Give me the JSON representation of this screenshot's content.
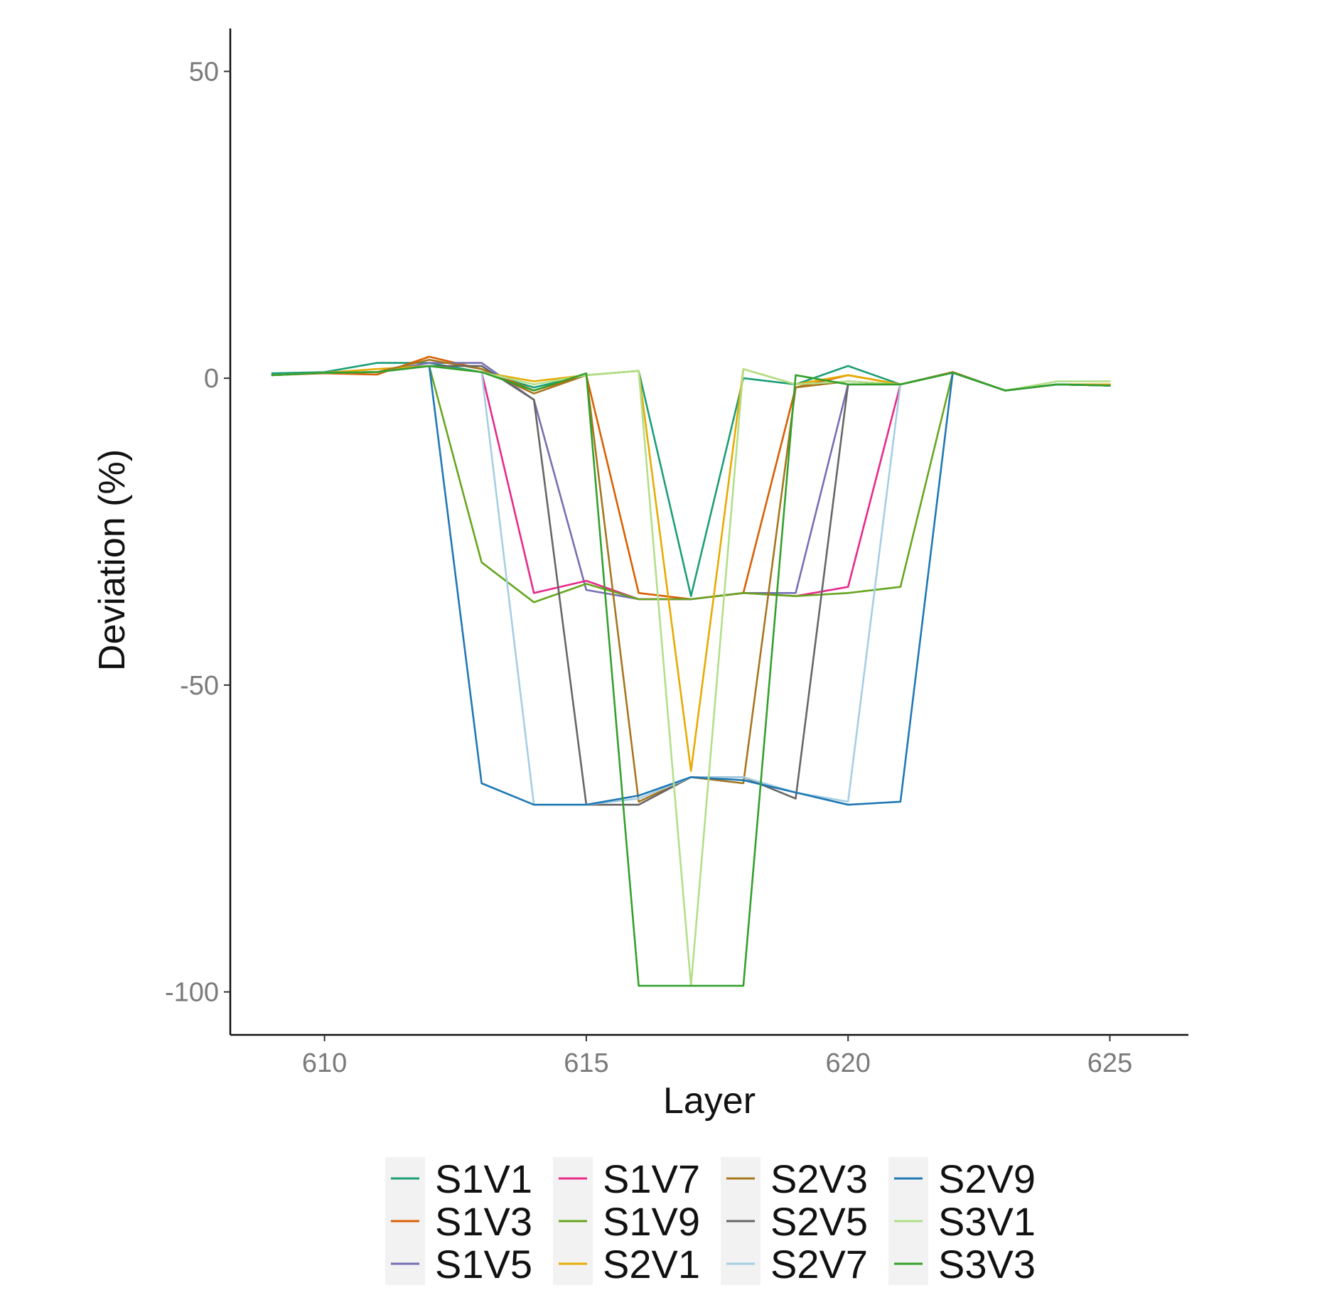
{
  "chart_data": {
    "type": "line",
    "title": "",
    "xlabel": "Layer",
    "ylabel": "Deviation (%)",
    "xlim": [
      608.2,
      626.5
    ],
    "ylim": [
      -107,
      57
    ],
    "xticks": [
      610,
      615,
      620,
      625
    ],
    "yticks": [
      50,
      0,
      -50,
      -100
    ],
    "grid": false,
    "legend_position": "bottom",
    "x": [
      609,
      610,
      611,
      612,
      613,
      614,
      615,
      616,
      617,
      618,
      619,
      620,
      621,
      622,
      623,
      624,
      625
    ],
    "series": [
      {
        "name": "S1V1",
        "color": "#1b9e77",
        "values": [
          0.8,
          1.0,
          2.5,
          2.5,
          1.0,
          -1.5,
          0.5,
          1.2,
          -35.5,
          0.0,
          -1.0,
          2.0,
          -1.0,
          1.0,
          -2.0,
          -1.0,
          -1.0
        ]
      },
      {
        "name": "S1V3",
        "color": "#d95f02",
        "values": [
          0.5,
          0.8,
          0.6,
          3.5,
          1.5,
          -2.0,
          0.5,
          -35.0,
          -36.0,
          -35.0,
          -1.5,
          0.5,
          -1.0,
          1.0,
          -2.0,
          -1.0,
          -1.2
        ]
      },
      {
        "name": "S1V5",
        "color": "#7570b3",
        "values": [
          0.5,
          0.9,
          1.0,
          2.5,
          2.5,
          -3.5,
          -34.5,
          -36.0,
          -36.0,
          -35.0,
          -35.0,
          -1.0,
          -1.0,
          0.9,
          -2.0,
          -1.0,
          -1.2
        ]
      },
      {
        "name": "S1V7",
        "color": "#e7298a",
        "values": [
          0.5,
          0.9,
          1.0,
          2.0,
          1.0,
          -35.0,
          -33.0,
          -36.0,
          -36.0,
          -35.0,
          -35.5,
          -34.0,
          -1.0,
          0.9,
          -2.0,
          -1.0,
          -1.2
        ]
      },
      {
        "name": "S1V9",
        "color": "#66a61e",
        "values": [
          0.5,
          0.9,
          1.0,
          2.0,
          -30.0,
          -36.5,
          -33.5,
          -36.0,
          -36.0,
          -35.0,
          -35.5,
          -35.0,
          -34.0,
          0.9,
          -2.0,
          -1.0,
          -1.2
        ]
      },
      {
        "name": "S2V1",
        "color": "#e6ab02",
        "values": [
          0.5,
          0.9,
          1.5,
          2.0,
          1.0,
          -0.5,
          0.5,
          1.2,
          -64.0,
          1.5,
          -1.0,
          0.5,
          -1.0,
          0.9,
          -2.0,
          -1.0,
          -1.0
        ]
      },
      {
        "name": "S2V3",
        "color": "#a6761d",
        "values": [
          0.5,
          0.9,
          1.0,
          3.0,
          1.5,
          -2.5,
          0.5,
          -69.0,
          -65.0,
          -66.0,
          -1.5,
          -0.5,
          -1.0,
          0.9,
          -2.0,
          -1.0,
          -1.2
        ]
      },
      {
        "name": "S2V5",
        "color": "#666666",
        "values": [
          0.5,
          0.9,
          1.0,
          2.0,
          2.0,
          -3.5,
          -69.5,
          -69.5,
          -65.0,
          -65.0,
          -68.5,
          -1.0,
          -1.0,
          0.9,
          -2.0,
          -1.0,
          -1.2
        ]
      },
      {
        "name": "S2V7",
        "color": "#a6cee3",
        "values": [
          0.5,
          0.9,
          1.0,
          2.0,
          1.0,
          -69.5,
          -69.5,
          -68.5,
          -65.0,
          -65.0,
          -67.5,
          -69.0,
          -1.0,
          0.9,
          -2.0,
          -1.0,
          -1.2
        ]
      },
      {
        "name": "S2V9",
        "color": "#1f78b4",
        "values": [
          0.5,
          0.9,
          1.0,
          2.0,
          -66.0,
          -69.5,
          -69.5,
          -68.0,
          -65.0,
          -65.5,
          -67.5,
          -69.5,
          -69.0,
          0.9,
          -2.0,
          -1.0,
          -1.2
        ]
      },
      {
        "name": "S3V1",
        "color": "#b2df8a",
        "values": [
          0.5,
          0.9,
          1.0,
          2.0,
          1.0,
          -1.0,
          0.5,
          1.2,
          -99.0,
          1.5,
          -1.0,
          -0.5,
          -1.0,
          0.9,
          -2.0,
          -0.5,
          -0.5
        ]
      },
      {
        "name": "S3V3",
        "color": "#33a02c",
        "values": [
          0.5,
          0.9,
          1.0,
          2.0,
          1.0,
          -2.0,
          0.8,
          -99.0,
          -99.0,
          -99.0,
          0.5,
          -1.0,
          -1.0,
          0.9,
          -2.0,
          -1.0,
          -1.2
        ]
      }
    ]
  }
}
